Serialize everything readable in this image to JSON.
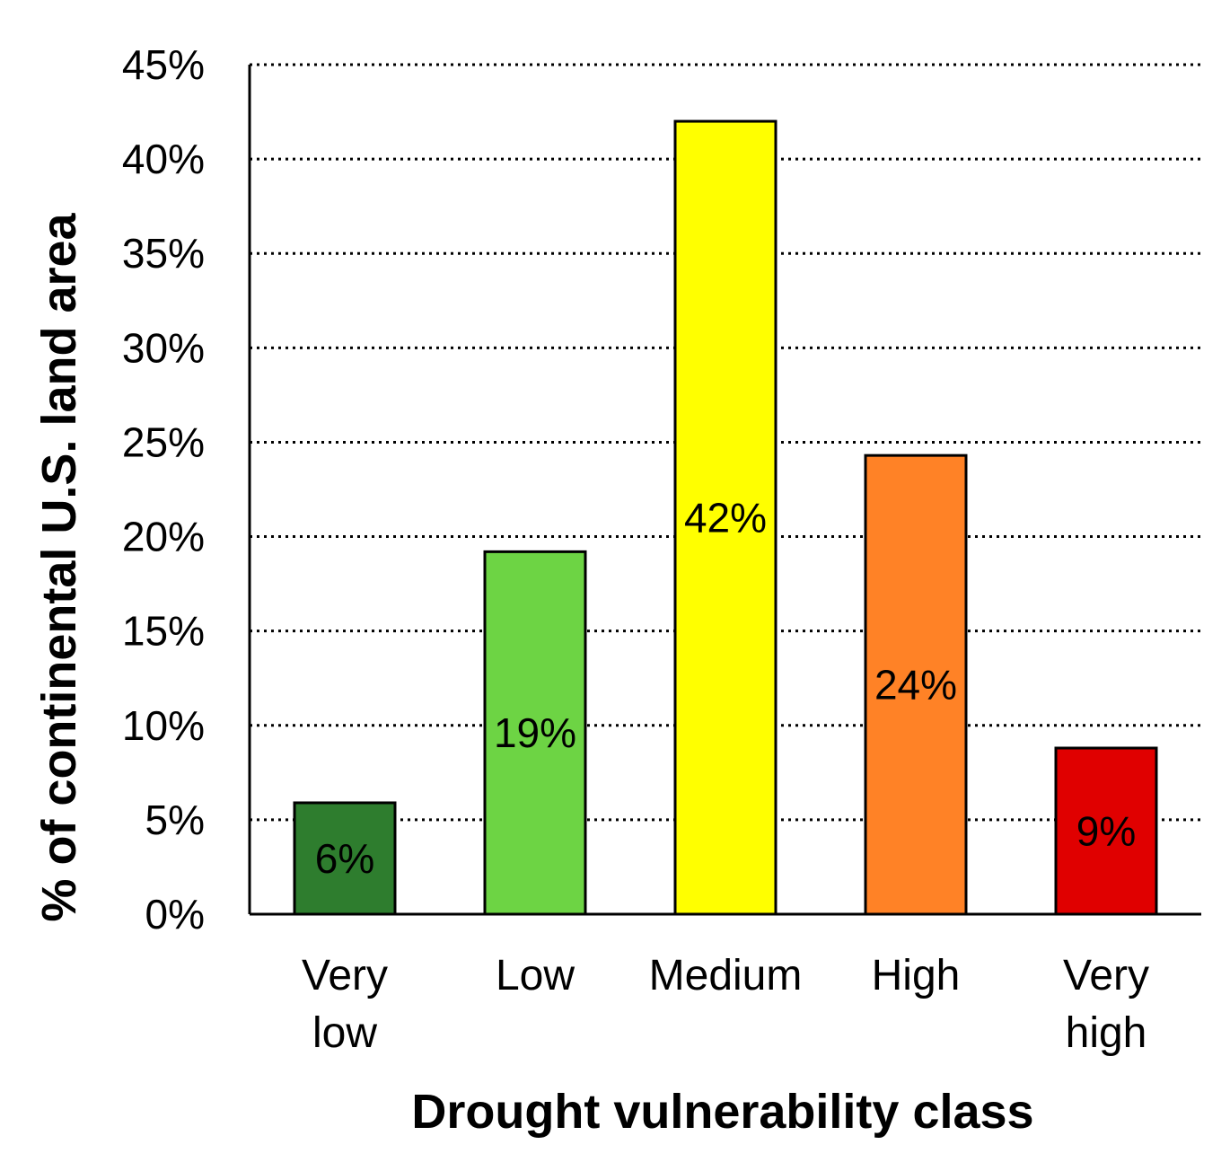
{
  "chart_data": {
    "type": "bar",
    "title": "",
    "xlabel": "Drought vulnerability class",
    "ylabel": "% of continental U.S. land area",
    "ylim": [
      0,
      45
    ],
    "y_ticks": [
      0,
      5,
      10,
      15,
      20,
      25,
      30,
      35,
      40,
      45
    ],
    "y_tick_labels": [
      "0%",
      "5%",
      "10%",
      "15%",
      "20%",
      "25%",
      "30%",
      "35%",
      "40%",
      "45%"
    ],
    "grid": "horizontal dotted",
    "categories": [
      [
        "Very",
        "low"
      ],
      [
        "Low"
      ],
      [
        "Medium"
      ],
      [
        "High"
      ],
      [
        "Very",
        "high"
      ]
    ],
    "values": [
      5.9,
      19.2,
      42.0,
      24.3,
      8.8
    ],
    "data_labels": [
      "6%",
      "19%",
      "42%",
      "24%",
      "9%"
    ],
    "colors": [
      "#2e7d2e",
      "#6dd444",
      "#ffff00",
      "#ff8226",
      "#e00000"
    ]
  }
}
